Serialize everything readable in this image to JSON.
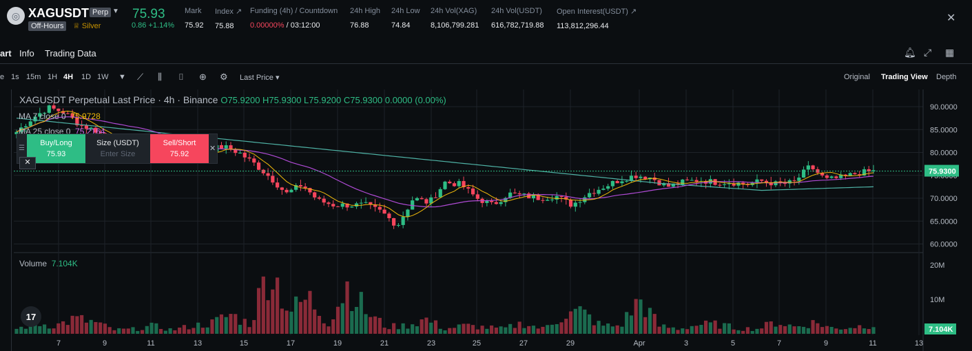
{
  "header": {
    "symbol": "XAGUSDT",
    "contract_badge": "Perp",
    "session_badge": "Off-Hours",
    "tier_badge": "Silver",
    "price": "75.93",
    "change": "0.86 +1.14%",
    "stats": [
      {
        "label": "Mark",
        "value": "75.92"
      },
      {
        "label": "Index ↗",
        "value": "75.88"
      },
      {
        "label": "Funding (4h) / Countdown",
        "value_red": "0.00000%",
        "value": " / 03:12:00"
      },
      {
        "label": "24h High",
        "value": "76.88"
      },
      {
        "label": "24h Low",
        "value": "74.84"
      },
      {
        "label": "24h Vol(XAG)",
        "value": "8,106,799.281"
      },
      {
        "label": "24h Vol(USDT)",
        "value": "616,782,719.88"
      },
      {
        "label": "Open Interest(USDT) ↗",
        "value": "113,812,296.44"
      }
    ]
  },
  "tabs": [
    "art",
    "Info",
    "Trading Data"
  ],
  "toolbar": {
    "intervals": [
      "1s",
      "15m",
      "1H",
      "4H",
      "1D",
      "1W"
    ],
    "active_interval": "4H",
    "price_type": "Last Price",
    "views": [
      "Original",
      "Trading View",
      "Depth"
    ],
    "active_view": "Trading View"
  },
  "legend": {
    "title": "XAGUSDT Perpetual Last Price · 4h · Binance",
    "ohlc": "O75.9200  H75.9300  L75.9200  C75.9300  0.0000 (0.00%)",
    "ma7_label": "MA 7 close 0",
    "ma7_value": "75.9728",
    "ma25_label": "MA 25 close 0",
    "ma25_value": "75.2164",
    "volume_label": "Volume",
    "volume_value": "7.104K"
  },
  "trade_widget": {
    "buy_label": "Buy/Long",
    "buy_price": "75.93",
    "size_label": "Size (USDT)",
    "size_placeholder": "Enter Size",
    "sell_label": "Sell/Short",
    "sell_price": "75.92"
  },
  "colors": {
    "up": "#2ebd85",
    "down": "#f6465d",
    "ma7": "#f0b90b",
    "ma25": "#b04bd6",
    "ma99": "#4fb3a6"
  },
  "chart_data": {
    "type": "candlestick",
    "price_axis": {
      "ticks": [
        "90.0000",
        "85.0000",
        "80.0000",
        "75.0000",
        "70.0000",
        "65.0000",
        "60.0000"
      ],
      "range": [
        58,
        92
      ],
      "last_price_label": "75.9300"
    },
    "volume_axis": {
      "ticks": [
        "20M",
        "10M"
      ],
      "last_volume_label": "7.104K"
    },
    "x_ticks": [
      "7",
      "9",
      "11",
      "13",
      "15",
      "17",
      "19",
      "21",
      "23",
      "25",
      "27",
      "29",
      "Apr",
      "3",
      "5",
      "7",
      "9",
      "11",
      "13"
    ],
    "close_path": [
      84.5,
      87.5,
      89.8,
      88.8,
      86,
      84.8,
      82.5,
      80.8,
      81,
      80.5,
      81.5,
      79,
      80.5,
      81.3,
      80,
      77.5,
      74.5,
      71,
      73,
      69.5,
      68.5,
      68.5,
      68.5,
      67,
      64,
      70,
      69,
      73.5,
      73,
      70,
      68.5,
      71,
      70.5,
      70,
      70.5,
      68.5,
      71,
      72.5,
      74,
      75,
      74.5,
      72.5,
      73.5,
      74,
      73.5,
      73.5,
      73,
      73.8,
      73,
      73.5,
      77,
      74,
      74.5,
      75.5,
      75.9
    ],
    "volume_path": [
      1.5,
      3.2,
      2.5,
      4.6,
      3.5,
      1.2,
      1.4,
      2.4,
      1.2,
      2.4,
      3.2,
      5.9,
      2.9,
      21,
      6.8,
      11,
      3.3,
      15,
      6.4,
      2.1,
      2.5,
      4.5,
      1.5,
      2.5,
      2,
      1.5,
      3.3,
      1.5,
      5.4,
      6.8,
      2.5,
      2.4,
      10.5,
      2.4,
      1.5,
      2.8,
      2.9,
      1.7,
      1.5,
      3.6,
      2.1,
      3.5,
      1.5,
      2.2,
      2.8
    ],
    "series": [
      {
        "name": "MA 7 close 0",
        "last": 75.9728
      },
      {
        "name": "MA 25 close 0",
        "last": 75.2164
      }
    ]
  }
}
